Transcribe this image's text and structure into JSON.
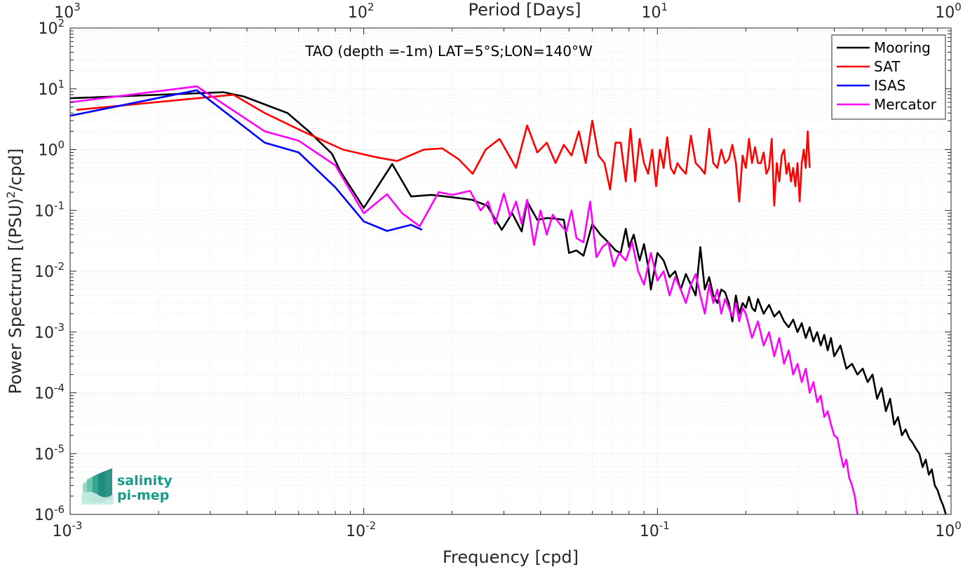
{
  "chart_data": {
    "type": "line",
    "title": "TAO (depth =-1m) LAT=5°S;LON=140°W",
    "xlabel": "Frequency [cpd]",
    "ylabel_main": "Power Spectrum [(PSU)",
    "ylabel_sup": "2",
    "ylabel_tail": "/cpd]",
    "top_xlabel": "Period [Days]",
    "x_scale": "log",
    "y_scale": "log",
    "xlim": [
      0.001,
      1
    ],
    "ylim": [
      1e-06,
      100
    ],
    "grid": true,
    "legend_position": "top-right",
    "x_ticks": [
      {
        "value": 0.001,
        "base": "10",
        "exp": "-3"
      },
      {
        "value": 0.01,
        "base": "10",
        "exp": "-2"
      },
      {
        "value": 0.1,
        "base": "10",
        "exp": "-1"
      },
      {
        "value": 1,
        "base": "10",
        "exp": "0"
      }
    ],
    "top_ticks": [
      {
        "value": 0.001,
        "base": "10",
        "exp": "3"
      },
      {
        "value": 0.01,
        "base": "10",
        "exp": "2"
      },
      {
        "value": 0.1,
        "base": "10",
        "exp": "1"
      },
      {
        "value": 1,
        "base": "10",
        "exp": "0"
      }
    ],
    "y_ticks": [
      {
        "value": 1e-06,
        "base": "10",
        "exp": "-6"
      },
      {
        "value": 1e-05,
        "base": "10",
        "exp": "-5"
      },
      {
        "value": 0.0001,
        "base": "10",
        "exp": "-4"
      },
      {
        "value": 0.001,
        "base": "10",
        "exp": "-3"
      },
      {
        "value": 0.01,
        "base": "10",
        "exp": "-2"
      },
      {
        "value": 0.1,
        "base": "10",
        "exp": "-1"
      },
      {
        "value": 1,
        "base": "10",
        "exp": "0"
      },
      {
        "value": 10,
        "base": "10",
        "exp": "1"
      },
      {
        "value": 100,
        "base": "10",
        "exp": "2"
      }
    ],
    "series": [
      {
        "name": "Mooring",
        "color": "#000000",
        "x": [
          0.001,
          0.00333,
          0.0039,
          0.0055,
          0.0065,
          0.0078,
          0.0083,
          0.01,
          0.0125,
          0.0145,
          0.017,
          0.02,
          0.0233,
          0.0263,
          0.0295,
          0.032,
          0.0345,
          0.036,
          0.039,
          0.042,
          0.045,
          0.048,
          0.05,
          0.053,
          0.056,
          0.06,
          0.064,
          0.068,
          0.072,
          0.075,
          0.078,
          0.08,
          0.083,
          0.087,
          0.09,
          0.093,
          0.095,
          0.1,
          0.105,
          0.11,
          0.115,
          0.12,
          0.125,
          0.13,
          0.135,
          0.14,
          0.145,
          0.15,
          0.155,
          0.16,
          0.165,
          0.17,
          0.175,
          0.18,
          0.185,
          0.19,
          0.195,
          0.2,
          0.205,
          0.21,
          0.215,
          0.22,
          0.23,
          0.24,
          0.25,
          0.26,
          0.27,
          0.28,
          0.29,
          0.3,
          0.31,
          0.32,
          0.33,
          0.34,
          0.35,
          0.36,
          0.37,
          0.38,
          0.39,
          0.4,
          0.42,
          0.44,
          0.46,
          0.48,
          0.5,
          0.52,
          0.54,
          0.56,
          0.58,
          0.6,
          0.62,
          0.64,
          0.66,
          0.68,
          0.7,
          0.72,
          0.74,
          0.76,
          0.78,
          0.8,
          0.82,
          0.84,
          0.86,
          0.88,
          0.9,
          0.92,
          0.94,
          0.96
        ],
        "y": [
          7.0,
          8.8,
          7.5,
          4.0,
          2.0,
          0.85,
          0.45,
          0.11,
          0.58,
          0.17,
          0.18,
          0.165,
          0.15,
          0.12,
          0.048,
          0.09,
          0.045,
          0.14,
          0.07,
          0.075,
          0.073,
          0.07,
          0.02,
          0.022,
          0.018,
          0.06,
          0.04,
          0.03,
          0.022,
          0.02,
          0.05,
          0.025,
          0.04,
          0.015,
          0.028,
          0.012,
          0.005,
          0.02,
          0.015,
          0.008,
          0.01,
          0.005,
          0.009,
          0.006,
          0.004,
          0.025,
          0.005,
          0.008,
          0.004,
          0.003,
          0.005,
          0.0045,
          0.003,
          0.0015,
          0.004,
          0.002,
          0.003,
          0.0025,
          0.0038,
          0.0025,
          0.0022,
          0.0035,
          0.002,
          0.0028,
          0.0018,
          0.0022,
          0.0015,
          0.0012,
          0.0016,
          0.001,
          0.0014,
          0.0008,
          0.0012,
          0.0007,
          0.001,
          0.0006,
          0.0009,
          0.0005,
          0.0008,
          0.0004,
          0.0006,
          0.00025,
          0.0003,
          0.0002,
          0.00025,
          0.00015,
          0.0002,
          8e-05,
          0.00012,
          5e-05,
          8e-05,
          3e-05,
          4e-05,
          2e-05,
          2.5e-05,
          1.8e-05,
          1.5e-05,
          1.2e-05,
          1e-05,
          6e-06,
          8e-06,
          4.5e-06,
          5.5e-06,
          3e-06,
          2.5e-06,
          1.8e-06,
          1.4e-06,
          1e-06
        ]
      },
      {
        "name": "SAT",
        "color": "#ff0000",
        "x": [
          0.00105,
          0.0036,
          0.0046,
          0.0062,
          0.0085,
          0.011,
          0.013,
          0.016,
          0.0185,
          0.021,
          0.0235,
          0.026,
          0.029,
          0.033,
          0.036,
          0.039,
          0.042,
          0.045,
          0.048,
          0.051,
          0.054,
          0.057,
          0.06,
          0.063,
          0.066,
          0.069,
          0.072,
          0.075,
          0.078,
          0.081,
          0.084,
          0.087,
          0.09,
          0.093,
          0.096,
          0.099,
          0.102,
          0.105,
          0.108,
          0.111,
          0.114,
          0.117,
          0.12,
          0.125,
          0.13,
          0.135,
          0.14,
          0.145,
          0.15,
          0.155,
          0.16,
          0.165,
          0.17,
          0.175,
          0.18,
          0.185,
          0.19,
          0.195,
          0.2,
          0.205,
          0.21,
          0.215,
          0.22,
          0.225,
          0.23,
          0.235,
          0.24,
          0.245,
          0.25,
          0.255,
          0.26,
          0.265,
          0.27,
          0.275,
          0.28,
          0.285,
          0.29,
          0.295,
          0.3,
          0.305,
          0.31,
          0.315,
          0.32,
          0.325,
          0.33
        ],
        "y": [
          4.5,
          8.0,
          4.0,
          2.0,
          1.0,
          0.75,
          0.65,
          1.0,
          1.05,
          0.7,
          0.4,
          1.0,
          1.5,
          0.5,
          2.5,
          0.9,
          1.3,
          0.6,
          1.2,
          0.8,
          2.0,
          0.6,
          3.0,
          0.8,
          0.6,
          0.22,
          1.3,
          1.3,
          0.3,
          2.2,
          0.3,
          1.5,
          0.6,
          0.4,
          1.0,
          0.25,
          1.0,
          0.5,
          1.6,
          0.5,
          0.4,
          0.6,
          0.5,
          0.4,
          1.7,
          0.6,
          0.5,
          0.4,
          2.2,
          0.6,
          0.5,
          1.0,
          0.6,
          0.7,
          1.2,
          0.6,
          0.14,
          0.8,
          0.5,
          1.5,
          0.6,
          1.1,
          0.6,
          0.6,
          0.9,
          0.4,
          0.5,
          1.5,
          0.12,
          0.6,
          0.3,
          0.8,
          1.0,
          0.4,
          0.6,
          0.3,
          0.5,
          0.25,
          0.6,
          0.14,
          0.6,
          1.0,
          0.5,
          2.0,
          0.5
        ]
      },
      {
        "name": "ISAS",
        "color": "#0000ff",
        "x": [
          0.001,
          0.0027,
          0.0046,
          0.006,
          0.008,
          0.01,
          0.012,
          0.0145,
          0.0158
        ],
        "y": [
          3.6,
          9.5,
          1.3,
          0.9,
          0.24,
          0.066,
          0.046,
          0.058,
          0.048
        ]
      },
      {
        "name": "Mercator",
        "color": "#ff00ff",
        "x": [
          0.001,
          0.0027,
          0.0046,
          0.006,
          0.008,
          0.01,
          0.012,
          0.0135,
          0.0155,
          0.018,
          0.02,
          0.023,
          0.025,
          0.0265,
          0.028,
          0.03,
          0.0315,
          0.033,
          0.0345,
          0.036,
          0.038,
          0.04,
          0.042,
          0.044,
          0.0465,
          0.049,
          0.051,
          0.053,
          0.056,
          0.059,
          0.062,
          0.065,
          0.068,
          0.071,
          0.074,
          0.078,
          0.082,
          0.086,
          0.09,
          0.095,
          0.1,
          0.105,
          0.11,
          0.115,
          0.12,
          0.125,
          0.13,
          0.135,
          0.14,
          0.145,
          0.15,
          0.155,
          0.16,
          0.165,
          0.17,
          0.175,
          0.18,
          0.185,
          0.19,
          0.195,
          0.2,
          0.21,
          0.22,
          0.23,
          0.24,
          0.25,
          0.26,
          0.27,
          0.28,
          0.29,
          0.3,
          0.31,
          0.32,
          0.33,
          0.34,
          0.35,
          0.36,
          0.37,
          0.38,
          0.39,
          0.4,
          0.41,
          0.42,
          0.43,
          0.44,
          0.45,
          0.46,
          0.47,
          0.48
        ],
        "y": [
          6.0,
          11.0,
          2.0,
          1.4,
          0.55,
          0.09,
          0.185,
          0.09,
          0.055,
          0.2,
          0.18,
          0.21,
          0.1,
          0.14,
          0.06,
          0.19,
          0.08,
          0.14,
          0.06,
          0.15,
          0.027,
          0.1,
          0.04,
          0.085,
          0.06,
          0.045,
          0.1,
          0.035,
          0.03,
          0.14,
          0.017,
          0.025,
          0.03,
          0.012,
          0.02,
          0.015,
          0.03,
          0.01,
          0.006,
          0.02,
          0.007,
          0.01,
          0.004,
          0.008,
          0.005,
          0.003,
          0.006,
          0.009,
          0.004,
          0.002,
          0.006,
          0.003,
          0.005,
          0.002,
          0.0035,
          0.0025,
          0.0018,
          0.003,
          0.0015,
          0.0025,
          0.002,
          0.0008,
          0.0015,
          0.0006,
          0.001,
          0.0004,
          0.0008,
          0.0003,
          0.0005,
          0.0002,
          0.0003,
          0.00015,
          0.00025,
          0.0001,
          0.00015,
          7e-05,
          9e-05,
          4e-05,
          5e-05,
          3e-05,
          2e-05,
          1.8e-05,
          1e-05,
          6e-06,
          8e-06,
          4e-06,
          3e-06,
          2e-06,
          1e-06
        ]
      }
    ]
  },
  "logo": {
    "line1": "salinity",
    "line2": "pi-mep"
  }
}
